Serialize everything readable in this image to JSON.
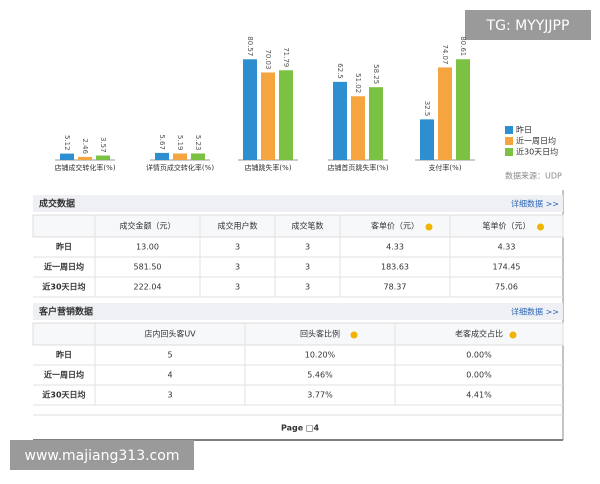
{
  "watermark_top": "TG: MYYJJPP",
  "watermark_bottom": "www.majiang313.com",
  "chart_data": {
    "type": "bar",
    "categories": [
      "店铺成交转化率(%)",
      "详情页成交转化率(%)",
      "店铺跳失率(%)",
      "店铺首页跳失率(%)",
      "支付率(%)"
    ],
    "series": [
      {
        "name": "昨日",
        "color": "#2e8fd0",
        "values": [
          5.12,
          5.67,
          80.57,
          62.5,
          32.5
        ]
      },
      {
        "name": "近一周日均",
        "color": "#f5a540",
        "values": [
          2.46,
          5.19,
          70.03,
          51.02,
          74.07
        ]
      },
      {
        "name": "近30天日均",
        "color": "#7cc242",
        "values": [
          3.57,
          5.23,
          71.79,
          58.25,
          80.61
        ]
      }
    ],
    "ylim": [
      0,
      100
    ],
    "source": "数据来源：UDP"
  },
  "tables": [
    {
      "title": "成交数据",
      "link": "详细数据 >>",
      "header": [
        "成交金额（元）",
        "成交用户数",
        "成交笔数",
        "客单价（元）",
        "笔单价（元）"
      ],
      "rows": [
        [
          "昨日",
          "13.00",
          "3",
          "3",
          "4.33",
          "4.33"
        ],
        [
          "近一周日均",
          "581.50",
          "3",
          "3",
          "183.63",
          "174.45"
        ],
        [
          "近30天日均",
          "222.04",
          "3",
          "3",
          "78.37",
          "75.06"
        ]
      ]
    },
    {
      "title": "客户营销数据",
      "link": "详细数据 >>",
      "header": [
        "店内回头客UV",
        "回头客比例",
        "老客成交占比"
      ],
      "rows": [
        [
          "昨日",
          "5",
          "10.20%",
          "0.00%"
        ],
        [
          "近一周日均",
          "4",
          "5.46%",
          "0.00%"
        ],
        [
          "近30天日均",
          "3",
          "3.77%",
          "4.41%"
        ]
      ]
    }
  ],
  "footer": "Page □4"
}
